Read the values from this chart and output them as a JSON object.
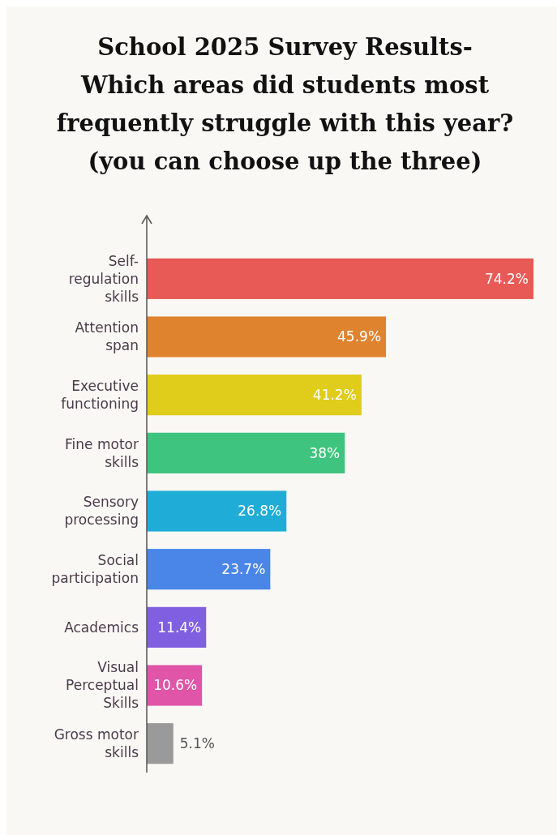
{
  "chart_data": {
    "type": "bar",
    "orientation": "horizontal",
    "title": "School 2025 Survey Results-\nWhich areas did students most\nfrequently struggle with this year?\n(you can choose up the three)",
    "categories": [
      "Self-regulation skills",
      "Attention span",
      "Executive functioning",
      "Fine motor skills",
      "Sensory processing",
      "Social participation",
      "Academics",
      "Visual Perceptual Skills",
      "Gross motor skills"
    ],
    "values": [
      74.2,
      45.9,
      41.2,
      38,
      26.8,
      23.7,
      11.4,
      10.6,
      5.1
    ],
    "value_labels": [
      "74.2%",
      "45.9%",
      "41.2%",
      "38%",
      "26.8%",
      "23.7%",
      "11.4%",
      "10.6%",
      "5.1%"
    ],
    "colors": [
      "#e85a56",
      "#e0832f",
      "#e0cc1a",
      "#3fc47f",
      "#1fadd8",
      "#4a86e8",
      "#8060e0",
      "#e055a8",
      "#9a9a9a"
    ]
  }
}
